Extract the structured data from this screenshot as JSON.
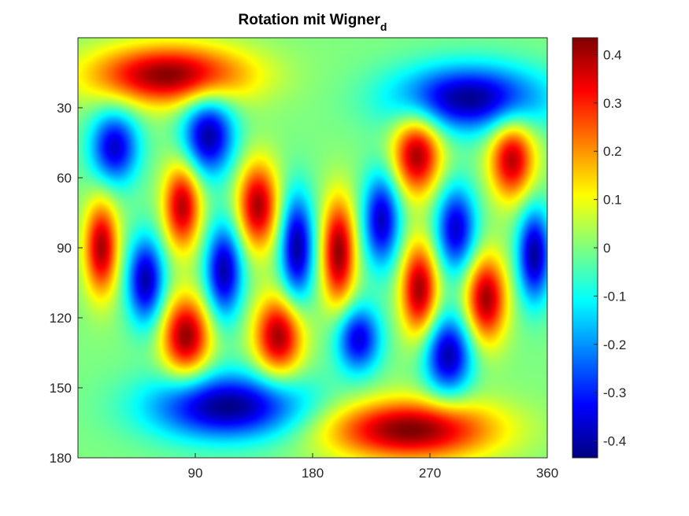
{
  "chart_data": {
    "type": "heatmap",
    "title": "Rotation mit Wigner",
    "title_subscript": "d",
    "xlabel": "",
    "ylabel": "",
    "xlim": [
      0,
      360
    ],
    "ylim": [
      0,
      180
    ],
    "y_direction": "reverse",
    "x_ticks": [
      90,
      180,
      270,
      360
    ],
    "y_ticks": [
      30,
      60,
      90,
      120,
      150,
      180
    ],
    "colormap": "jet",
    "clim": [
      -0.435,
      0.435
    ],
    "colorbar_ticks": [
      0.4,
      0.3,
      0.2,
      0.1,
      0,
      -0.1,
      -0.2,
      -0.3,
      -0.4
    ],
    "colorbar_tick_labels": [
      "0.4",
      "0.3",
      "0.2",
      "0.1",
      "0",
      "-0.1",
      "-0.2",
      "-0.3",
      "-0.4"
    ],
    "grid": false,
    "blobs": [
      {
        "x": 70,
        "y": 16,
        "v": 0.43,
        "sx": 42,
        "sy": 9
      },
      {
        "x": 300,
        "y": 26,
        "v": -0.42,
        "sx": 40,
        "sy": 10
      },
      {
        "x": 28,
        "y": 47,
        "v": -0.37,
        "sx": 13,
        "sy": 11
      },
      {
        "x": 100,
        "y": 42,
        "v": -0.41,
        "sx": 14,
        "sy": 12
      },
      {
        "x": 260,
        "y": 50,
        "v": 0.41,
        "sx": 13,
        "sy": 12
      },
      {
        "x": 333,
        "y": 52,
        "v": 0.39,
        "sx": 12,
        "sy": 12
      },
      {
        "x": 80,
        "y": 72,
        "v": 0.39,
        "sx": 10,
        "sy": 13
      },
      {
        "x": 138,
        "y": 72,
        "v": 0.4,
        "sx": 11,
        "sy": 13
      },
      {
        "x": 233,
        "y": 78,
        "v": -0.38,
        "sx": 10,
        "sy": 14
      },
      {
        "x": 290,
        "y": 82,
        "v": -0.37,
        "sx": 11,
        "sy": 13
      },
      {
        "x": 18,
        "y": 90,
        "v": 0.4,
        "sx": 9,
        "sy": 14
      },
      {
        "x": 168,
        "y": 90,
        "v": -0.41,
        "sx": 9,
        "sy": 16
      },
      {
        "x": 200,
        "y": 92,
        "v": 0.42,
        "sx": 9,
        "sy": 16
      },
      {
        "x": 350,
        "y": 93,
        "v": -0.41,
        "sx": 9,
        "sy": 14
      },
      {
        "x": 52,
        "y": 104,
        "v": -0.4,
        "sx": 10,
        "sy": 13
      },
      {
        "x": 112,
        "y": 100,
        "v": -0.4,
        "sx": 10,
        "sy": 14
      },
      {
        "x": 262,
        "y": 108,
        "v": 0.41,
        "sx": 10,
        "sy": 14
      },
      {
        "x": 313,
        "y": 112,
        "v": 0.41,
        "sx": 11,
        "sy": 13
      },
      {
        "x": 83,
        "y": 128,
        "v": 0.42,
        "sx": 13,
        "sy": 12
      },
      {
        "x": 154,
        "y": 128,
        "v": 0.41,
        "sx": 13,
        "sy": 12
      },
      {
        "x": 215,
        "y": 129,
        "v": -0.36,
        "sx": 12,
        "sy": 10
      },
      {
        "x": 284,
        "y": 136,
        "v": -0.4,
        "sx": 13,
        "sy": 12
      },
      {
        "x": 115,
        "y": 158,
        "v": -0.43,
        "sx": 42,
        "sy": 10
      },
      {
        "x": 255,
        "y": 168,
        "v": 0.44,
        "sx": 45,
        "sy": 9
      }
    ]
  }
}
